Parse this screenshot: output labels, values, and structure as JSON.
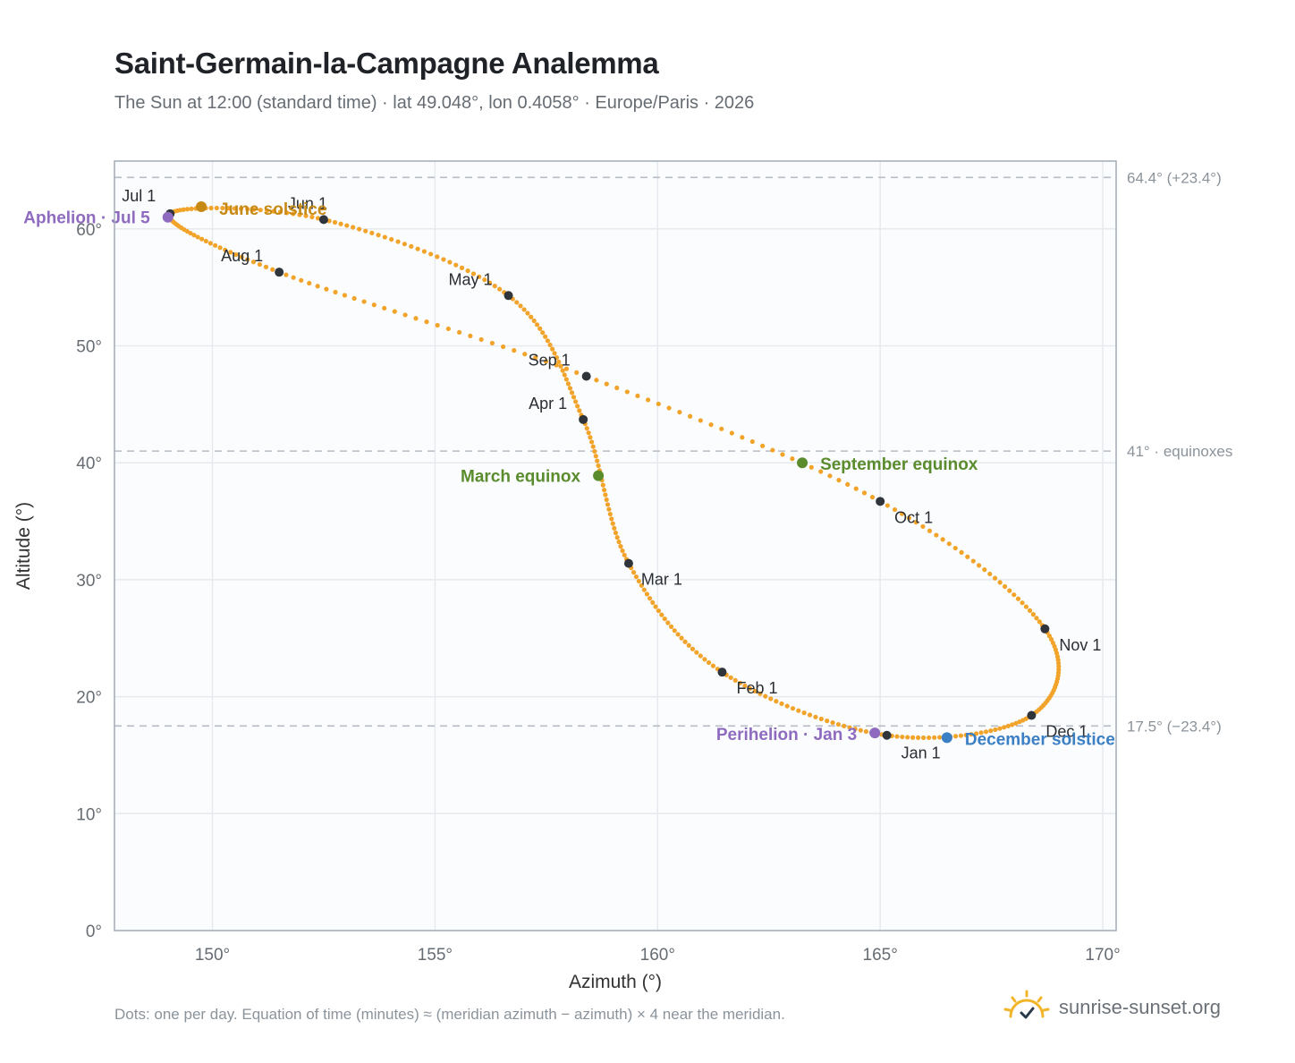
{
  "header": {
    "title": "Saint-Germain-la-Campagne Analemma",
    "subtitle": "The Sun at 12:00 (standard time) · lat 49.048°, lon 0.4058° · Europe/Paris · 2026"
  },
  "footer": {
    "note": "Dots: one per day. Equation of time (minutes) ≈ (meridian azimuth − azimuth) × 4 near the meridian.",
    "brand": "sunrise-sunset.org",
    "brand_icon": "sun-check-icon"
  },
  "colors": {
    "curve": "#f2a32a",
    "month_marker": "#2f353b",
    "aphelion": "#8e6bbf",
    "solstice_june": "#c68a14",
    "equinox": "#5a8c2e",
    "solstice_dec": "#3b7fc4",
    "plot_bg": "#fbfcfe",
    "grid": "#e6eaee",
    "frame": "#a3acb6",
    "ref_line": "#b6bdc5"
  },
  "chart_data": {
    "type": "scatter",
    "title": "Saint-Germain-la-Campagne Analemma",
    "xlabel": "Azimuth (°)",
    "ylabel": "Altitude (°)",
    "xlim": [
      147.8,
      170.3
    ],
    "ylim": [
      0,
      65.8
    ],
    "x_ticks": [
      "150°",
      "155°",
      "160°",
      "165°",
      "170°"
    ],
    "y_ticks": [
      "0°",
      "10°",
      "20°",
      "30°",
      "40°",
      "50°",
      "60°"
    ],
    "x_tick_values": [
      150,
      155,
      160,
      165,
      170
    ],
    "y_tick_values": [
      0,
      10,
      20,
      30,
      40,
      50,
      60
    ],
    "grid": true,
    "monthly_positions": [
      {
        "label": "Jan 1",
        "az": 165.15,
        "alt": 16.7
      },
      {
        "label": "Feb 1",
        "az": 161.45,
        "alt": 22.1
      },
      {
        "label": "Mar 1",
        "az": 159.35,
        "alt": 31.4
      },
      {
        "label": "Apr 1",
        "az": 158.33,
        "alt": 43.7
      },
      {
        "label": "May 1",
        "az": 156.65,
        "alt": 54.3
      },
      {
        "label": "Jun 1",
        "az": 152.5,
        "alt": 60.8
      },
      {
        "label": "Jul 1",
        "az": 149.05,
        "alt": 61.3
      },
      {
        "label": "Aug 1",
        "az": 151.5,
        "alt": 56.3
      },
      {
        "label": "Sep 1",
        "az": 158.4,
        "alt": 47.4
      },
      {
        "label": "Oct 1",
        "az": 165.0,
        "alt": 36.7
      },
      {
        "label": "Nov 1",
        "az": 168.7,
        "alt": 25.8
      },
      {
        "label": "Dec 1",
        "az": 168.4,
        "alt": 18.4
      }
    ],
    "events": [
      {
        "label": "Aphelion · Jul 5",
        "az": 149.0,
        "alt": 61.0,
        "color": "#8e6bbf"
      },
      {
        "label": "June solstice",
        "az": 149.75,
        "alt": 61.9,
        "color": "#c68a14"
      },
      {
        "label": "March equinox",
        "az": 158.67,
        "alt": 38.9,
        "color": "#5a8c2e"
      },
      {
        "label": "September equinox",
        "az": 163.25,
        "alt": 40.0,
        "color": "#5a8c2e"
      },
      {
        "label": "Perihelion · Jan 3",
        "az": 164.88,
        "alt": 16.9,
        "color": "#8e6bbf"
      },
      {
        "label": "December solstice",
        "az": 166.5,
        "alt": 16.5,
        "color": "#3b7fc4"
      }
    ],
    "reference_lines": [
      {
        "alt": 64.4,
        "label": "64.4° (+23.4°)"
      },
      {
        "alt": 41.0,
        "label": "41° · equinoxes"
      },
      {
        "alt": 17.5,
        "label": "17.5° (−23.4°)"
      }
    ]
  }
}
